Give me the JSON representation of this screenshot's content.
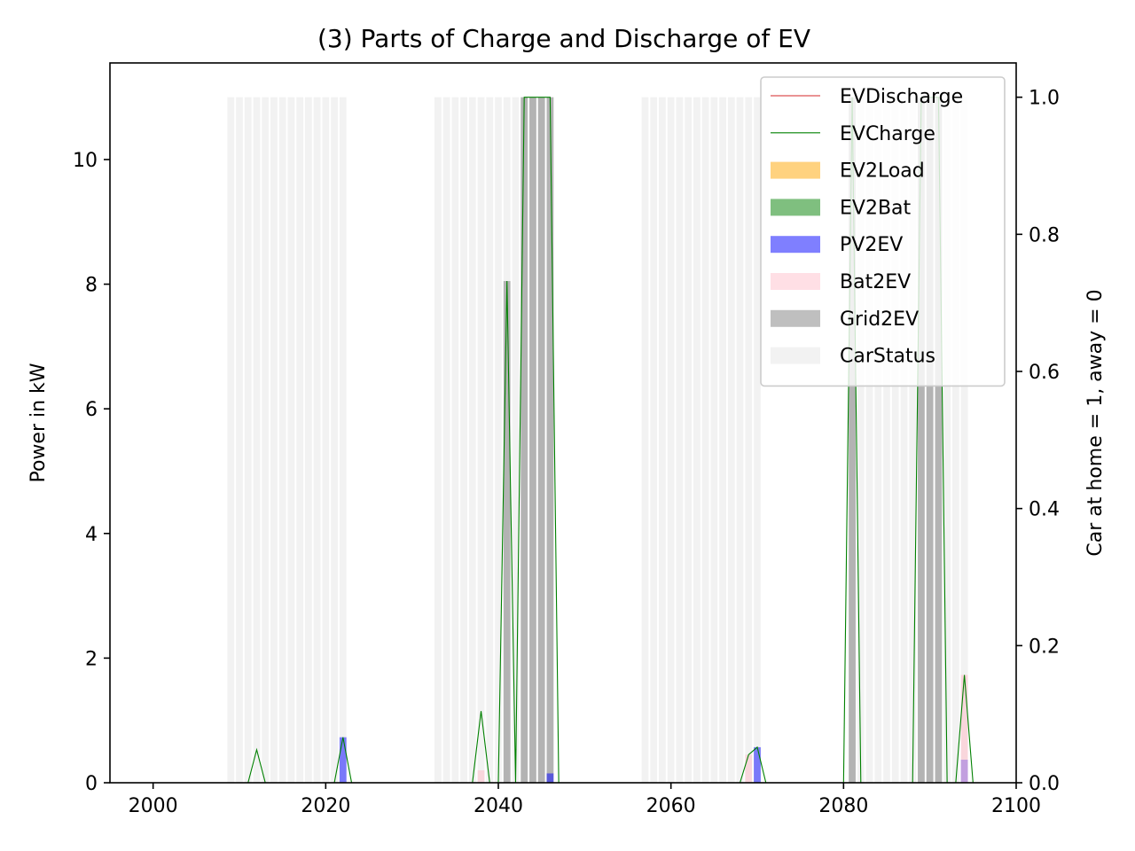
{
  "chart_data": {
    "type": "bar",
    "title": "(3) Parts of Charge and Discharge of EV",
    "xlabel": "",
    "ylabel": "Power in kW",
    "y2label": "Car at home = 1, away = 0",
    "xlim": [
      1995,
      2100
    ],
    "ylim": [
      0,
      11.55
    ],
    "y2lim": [
      0,
      1.05
    ],
    "x_ticks": [
      2000,
      2020,
      2040,
      2060,
      2080,
      2100
    ],
    "y_ticks": [
      0,
      2,
      4,
      6,
      8,
      10
    ],
    "y2_ticks": [
      "0.0",
      "0.2",
      "0.4",
      "0.6",
      "0.8",
      "1.0"
    ],
    "grid": false,
    "legend_position": "top-right",
    "legend": [
      {
        "label": "EVDischarge",
        "kind": "line",
        "color": "#d62728"
      },
      {
        "label": "EVCharge",
        "kind": "line",
        "color": "#008000"
      },
      {
        "label": "EV2Load",
        "kind": "patch",
        "color": "#ffa500",
        "opacity": 0.5
      },
      {
        "label": "EV2Bat",
        "kind": "patch",
        "color": "#008000",
        "opacity": 0.5
      },
      {
        "label": "PV2EV",
        "kind": "patch",
        "color": "#0000ff",
        "opacity": 0.5
      },
      {
        "label": "Bat2EV",
        "kind": "patch",
        "color": "#ffc0cb",
        "opacity": 0.5
      },
      {
        "label": "Grid2EV",
        "kind": "patch",
        "color": "#808080",
        "opacity": 0.5
      },
      {
        "label": "CarStatus",
        "kind": "patch",
        "color": "#d3d3d3",
        "opacity": 0.3
      }
    ],
    "car_status_ranges": [
      [
        2009,
        2022
      ],
      [
        2033,
        2046
      ],
      [
        2057,
        2070
      ],
      [
        2081,
        2094
      ]
    ],
    "series": [
      {
        "name": "Grid2EV",
        "color": "#808080",
        "opacity": 0.55,
        "axis": "y",
        "points": [
          [
            2041,
            8.05
          ],
          [
            2043,
            11.0
          ],
          [
            2044,
            11.0
          ],
          [
            2045,
            11.0
          ],
          [
            2046,
            11.0
          ],
          [
            2081,
            11.0
          ],
          [
            2089,
            11.0
          ],
          [
            2090,
            11.0
          ],
          [
            2091,
            11.0
          ]
        ]
      },
      {
        "name": "PV2EV",
        "color": "#0000ff",
        "opacity": 0.5,
        "axis": "y",
        "points": [
          [
            2022,
            0.73
          ],
          [
            2046,
            0.15
          ],
          [
            2070,
            0.57
          ],
          [
            2094,
            0.37
          ]
        ]
      },
      {
        "name": "Bat2EV",
        "color": "#ffc0cb",
        "opacity": 0.55,
        "axis": "y",
        "points": [
          [
            2038,
            0.2
          ],
          [
            2069,
            0.45
          ],
          [
            2094,
            1.73
          ]
        ]
      },
      {
        "name": "EVCharge",
        "color": "#008000",
        "axis": "y",
        "x": [
          2011,
          2012,
          2013,
          2021,
          2022,
          2023,
          2037,
          2038,
          2039,
          2040,
          2041,
          2042,
          2043,
          2044,
          2045,
          2046,
          2047,
          2068,
          2069,
          2070,
          2071,
          2080,
          2081,
          2082,
          2088,
          2089,
          2090,
          2091,
          2092,
          2093,
          2094,
          2095
        ],
        "y": [
          0,
          0.53,
          0,
          0,
          0.73,
          0,
          0,
          1.15,
          0,
          0,
          8.05,
          0,
          11.0,
          11.0,
          11.0,
          11.0,
          0,
          0,
          0.45,
          0.57,
          0,
          0,
          11.0,
          0,
          0,
          11.0,
          11.0,
          11.0,
          0,
          0,
          1.73,
          0
        ]
      },
      {
        "name": "EVDischarge",
        "color": "#d62728",
        "axis": "y",
        "x": [
          1995,
          2100
        ],
        "y": [
          0,
          0
        ]
      }
    ]
  }
}
